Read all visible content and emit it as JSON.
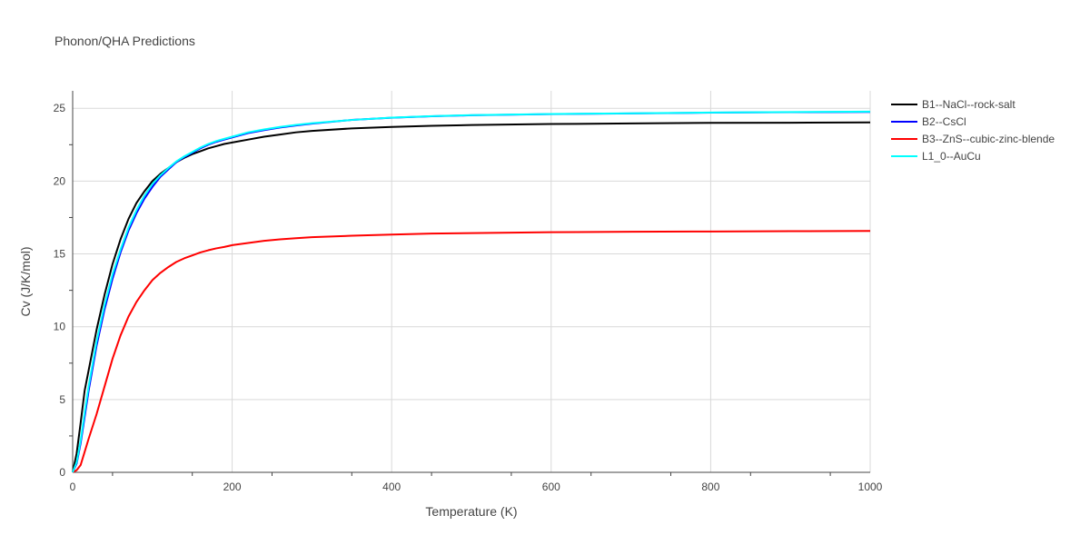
{
  "chart_data": {
    "type": "line",
    "title": "Phonon/QHA Predictions",
    "xlabel": "Temperature (K)",
    "ylabel": "Cv (J/K/mol)",
    "xlim": [
      0,
      1000
    ],
    "ylim": [
      0,
      26.2
    ],
    "x_ticks": [
      0,
      200,
      400,
      600,
      800,
      1000
    ],
    "y_ticks": [
      0,
      5,
      10,
      15,
      20,
      25
    ],
    "grid": true,
    "legend_position": "right",
    "x": [
      0,
      5,
      10,
      15,
      20,
      30,
      40,
      50,
      60,
      70,
      80,
      90,
      100,
      110,
      120,
      130,
      140,
      150,
      160,
      170,
      180,
      190,
      200,
      220,
      240,
      260,
      280,
      300,
      350,
      400,
      450,
      500,
      600,
      700,
      800,
      900,
      1000
    ],
    "series": [
      {
        "name": "B1--NaCl--rock-salt",
        "color": "#000000",
        "values": [
          0,
          1.3,
          3.4,
          5.6,
          7.0,
          9.8,
          12.2,
          14.3,
          16.0,
          17.4,
          18.5,
          19.3,
          20.0,
          20.5,
          20.9,
          21.3,
          21.6,
          21.85,
          22.05,
          22.25,
          22.4,
          22.55,
          22.65,
          22.85,
          23.05,
          23.2,
          23.35,
          23.45,
          23.62,
          23.72,
          23.8,
          23.85,
          23.92,
          23.96,
          24.0,
          24.01,
          24.03
        ]
      },
      {
        "name": "B2--CsCl",
        "color": "#0000ff",
        "values": [
          0,
          0.6,
          2.0,
          3.8,
          5.6,
          8.7,
          11.2,
          13.3,
          15.1,
          16.6,
          17.8,
          18.8,
          19.6,
          20.3,
          20.8,
          21.3,
          21.65,
          21.95,
          22.25,
          22.5,
          22.7,
          22.85,
          23.0,
          23.3,
          23.5,
          23.68,
          23.82,
          23.95,
          24.2,
          24.35,
          24.45,
          24.52,
          24.6,
          24.65,
          24.7,
          24.73,
          24.75
        ]
      },
      {
        "name": "B3--ZnS--cubic-zinc-blende",
        "color": "#ff0000",
        "values": [
          0,
          0.15,
          0.5,
          1.4,
          2.3,
          4.0,
          5.9,
          7.8,
          9.4,
          10.7,
          11.7,
          12.5,
          13.2,
          13.7,
          14.1,
          14.45,
          14.7,
          14.9,
          15.1,
          15.25,
          15.38,
          15.48,
          15.6,
          15.75,
          15.9,
          16.0,
          16.08,
          16.15,
          16.25,
          16.33,
          16.4,
          16.43,
          16.49,
          16.52,
          16.54,
          16.56,
          16.58
        ]
      },
      {
        "name": "L1_0--AuCu",
        "color": "#00ffff",
        "values": [
          0,
          0.7,
          2.2,
          4.1,
          5.9,
          9.0,
          11.5,
          13.6,
          15.3,
          16.8,
          18.0,
          19.0,
          19.8,
          20.4,
          20.9,
          21.35,
          21.7,
          22.0,
          22.3,
          22.55,
          22.75,
          22.9,
          23.05,
          23.35,
          23.55,
          23.72,
          23.86,
          23.98,
          24.2,
          24.36,
          24.46,
          24.53,
          24.61,
          24.66,
          24.71,
          24.74,
          24.77
        ]
      }
    ]
  }
}
